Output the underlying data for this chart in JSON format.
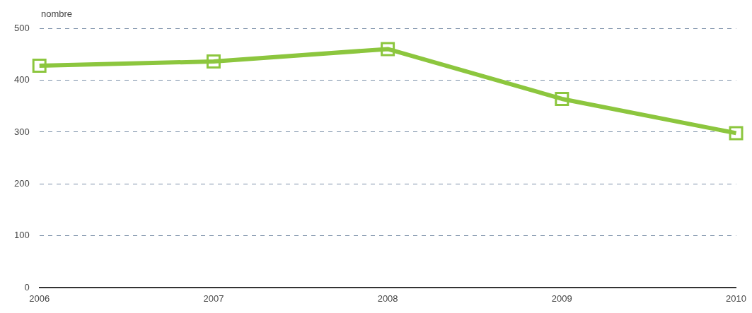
{
  "chart_data": {
    "type": "line",
    "ylabel": "nombre",
    "categories": [
      "2006",
      "2007",
      "2008",
      "2009",
      "2010"
    ],
    "series": [
      {
        "color": "#8cc63e",
        "values": [
          428,
          436,
          460,
          364,
          298
        ]
      }
    ],
    "ylim": [
      0,
      500
    ],
    "yticks": [
      0,
      100,
      200,
      300,
      400,
      500
    ],
    "grid": "y",
    "legend": false,
    "marker": "square",
    "line_style": "solid"
  }
}
